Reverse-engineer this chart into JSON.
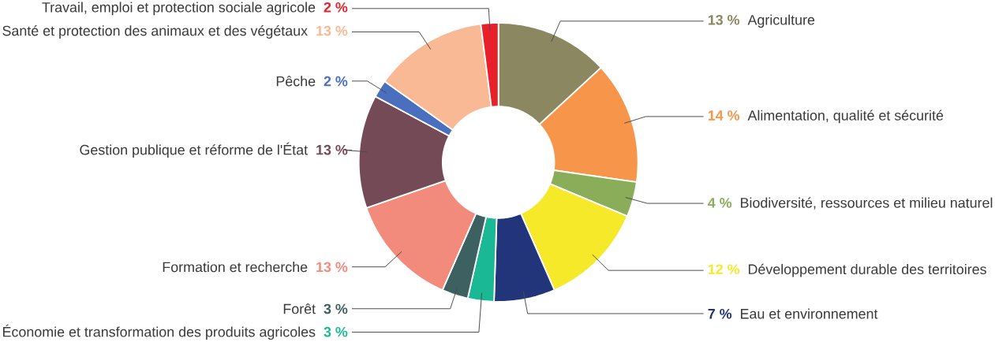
{
  "chart_data": {
    "type": "donut",
    "categories": [
      "Agriculture",
      "Alimentation, qualité et sécurité",
      "Biodiversité, ressources et milieu naturel",
      "Développement durable des territoires",
      "Eau et environnement",
      "Économie et transformation des produits agricoles",
      "Forêt",
      "Formation et recherche",
      "Gestion publique et réforme de l'État",
      "Pêche",
      "Santé et protection des animaux et des végétaux",
      "Travail, emploi et protection sociale agricole"
    ],
    "values": [
      13,
      14,
      4,
      12,
      7,
      3,
      3,
      13,
      13,
      2,
      13,
      2
    ],
    "value_labels": [
      "13 %",
      "14 %",
      "4 %",
      "12 %",
      "7 %",
      "3 %",
      "3 %",
      "13 %",
      "13 %",
      "2 %",
      "13 %",
      "2 %"
    ],
    "colors": [
      "#8b8760",
      "#f7964a",
      "#8aad5a",
      "#f5e92a",
      "#23357a",
      "#1ab894",
      "#3d6060",
      "#f28b7c",
      "#744a57",
      "#4a6fbf",
      "#f9b994",
      "#e8202a"
    ]
  }
}
